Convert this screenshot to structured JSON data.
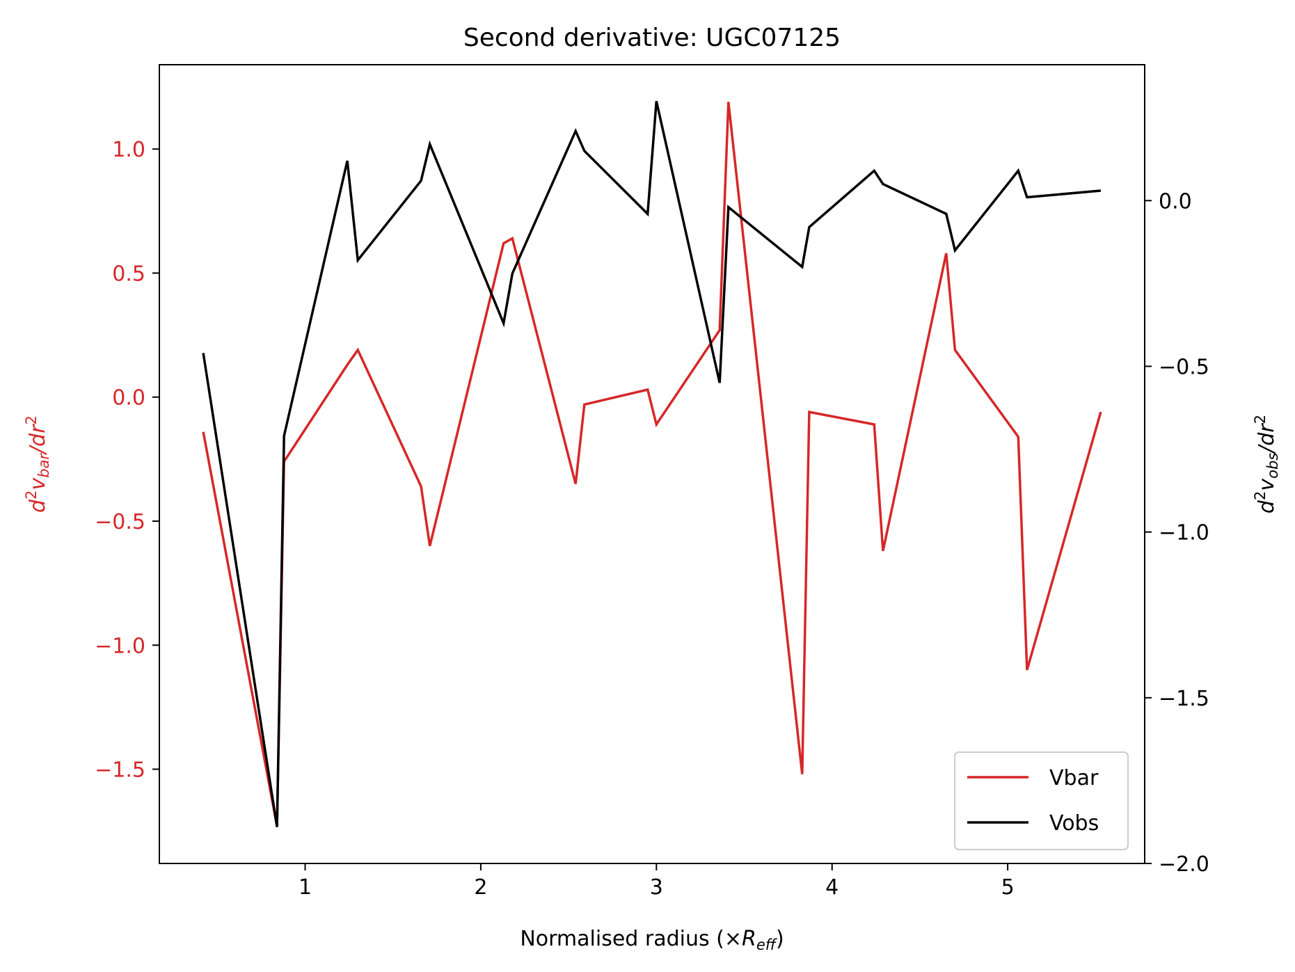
{
  "colors": {
    "vbar": "#d62728",
    "vobs": "#000000",
    "left_axis": "#d62728",
    "right_axis": "#000000"
  },
  "chart_data": {
    "type": "line",
    "title": "Second derivative: UGC07125",
    "xlabel": {
      "main": "Normalised radius (×",
      "symbol": "R",
      "sub": "eff",
      "close": ")"
    },
    "ylabel_left": {
      "d": "d",
      "sup1": "2",
      "v": "v",
      "sub": "bar",
      "slash": "/",
      "dr": "dr",
      "sup2": "2"
    },
    "ylabel_right": {
      "d": "d",
      "sup1": "2",
      "v": "v",
      "sub": "obs",
      "slash": "/",
      "dr": "dr",
      "sup2": "2"
    },
    "xlim": [
      0.17,
      5.78
    ],
    "ylim_left": [
      -1.88,
      1.34
    ],
    "ylim_right": [
      -2.0,
      0.41
    ],
    "x_ticks": [
      1,
      2,
      3,
      4,
      5
    ],
    "x_tick_labels": [
      "1",
      "2",
      "3",
      "4",
      "5"
    ],
    "y_left_ticks": [
      1.0,
      0.5,
      0.0,
      -0.5,
      -1.0,
      -1.5
    ],
    "y_left_tick_labels": [
      "1.0",
      "0.5",
      "0.0",
      "−0.5",
      "−1.0",
      "−1.5"
    ],
    "y_right_ticks": [
      0.0,
      -0.5,
      -1.0,
      -1.5,
      -2.0
    ],
    "y_right_tick_labels": [
      "0.0",
      "−0.5",
      "−1.0",
      "−1.5",
      "−2.0"
    ],
    "legend": {
      "placement": "lower-right",
      "entries": [
        "Vbar",
        "Vobs"
      ]
    },
    "grid": false,
    "series": [
      {
        "name": "Vbar",
        "axis": "left",
        "x": [
          0.42,
          0.84,
          0.88,
          1.24,
          1.3,
          1.66,
          1.71,
          2.13,
          2.18,
          2.54,
          2.59,
          2.95,
          3.0,
          3.36,
          3.41,
          3.83,
          3.87,
          4.24,
          4.29,
          4.65,
          4.7,
          5.06,
          5.11,
          5.53
        ],
        "y": [
          -0.14,
          -1.73,
          -0.26,
          0.13,
          0.19,
          -0.36,
          -0.6,
          0.62,
          0.64,
          -0.35,
          -0.03,
          0.03,
          -0.11,
          0.27,
          1.19,
          -1.52,
          -0.06,
          -0.11,
          -0.62,
          0.58,
          0.19,
          -0.16,
          -1.1,
          -0.06
        ]
      },
      {
        "name": "Vobs",
        "axis": "right",
        "x": [
          0.42,
          0.84,
          0.88,
          1.24,
          1.3,
          1.66,
          1.71,
          2.13,
          2.18,
          2.54,
          2.59,
          2.95,
          3.0,
          3.36,
          3.41,
          3.83,
          3.87,
          4.24,
          4.29,
          4.65,
          4.7,
          5.06,
          5.11,
          5.53
        ],
        "y": [
          -0.46,
          -1.89,
          -0.71,
          0.12,
          -0.18,
          0.06,
          0.17,
          -0.37,
          -0.22,
          0.21,
          0.15,
          -0.04,
          0.3,
          -0.55,
          -0.02,
          -0.2,
          -0.08,
          0.09,
          0.05,
          -0.04,
          -0.15,
          0.09,
          0.01,
          0.03
        ]
      }
    ]
  }
}
